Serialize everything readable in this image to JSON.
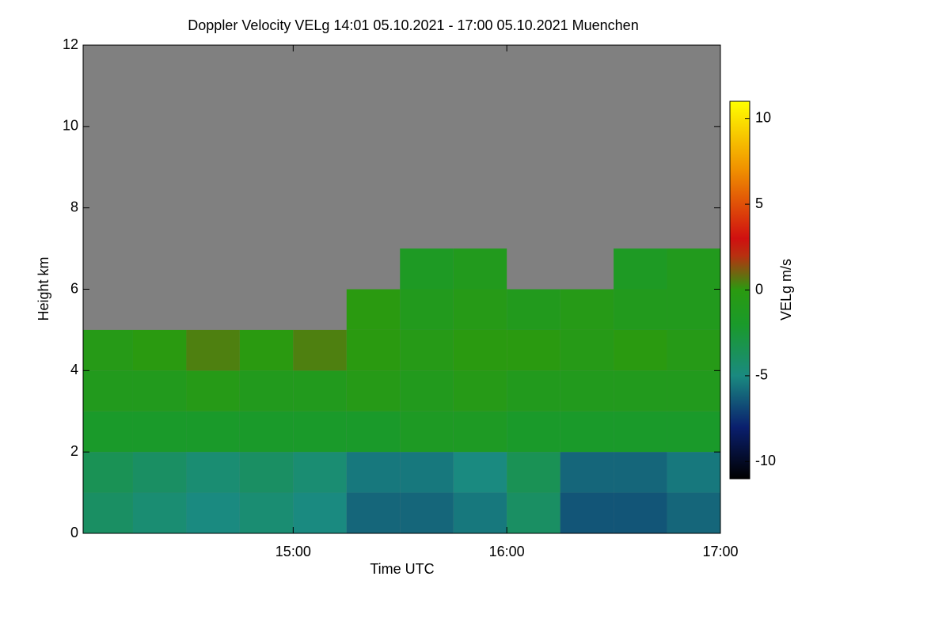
{
  "chart_data": {
    "type": "heatmap",
    "title": "Doppler Velocity VELg   14:01 05.10.2021 - 17:00 05.10.2021 Muenchen",
    "x_label": "Time UTC",
    "y_label": "Height km",
    "colorbar_label": "VELg m/s",
    "xbins": [
      841,
      855,
      870,
      885,
      900,
      915,
      930,
      945,
      960,
      975,
      990,
      1005,
      1020
    ],
    "ybins": [
      0,
      1,
      2,
      3,
      4,
      5,
      6,
      7
    ],
    "values": [
      [
        -4,
        -4.5,
        -5,
        -4.5,
        -5,
        -6,
        -6,
        -5.5,
        -4,
        -6.5,
        -6.5,
        -6
      ],
      [
        -3.5,
        -4,
        -4.5,
        -4,
        -4.5,
        -5.5,
        -5.5,
        -5,
        -3.5,
        -6,
        -6,
        -5.5
      ],
      [
        -2,
        -2,
        -2,
        -2,
        -2,
        -2,
        -1.5,
        -1.5,
        -2,
        -2,
        -2,
        -2
      ],
      [
        -1,
        -1,
        -0.5,
        -1,
        -1,
        -0.5,
        -1,
        -0.5,
        -1,
        -1,
        -1,
        -1
      ],
      [
        -0.5,
        0,
        0.5,
        0,
        0.5,
        0,
        -0.5,
        0,
        0,
        -0.5,
        0,
        -0.5
      ],
      [
        null,
        null,
        null,
        null,
        null,
        0,
        -1,
        -0.5,
        -1,
        -0.5,
        -1,
        -1
      ],
      [
        null,
        null,
        null,
        null,
        null,
        null,
        -1.5,
        -1,
        null,
        null,
        -1.5,
        -1
      ]
    ],
    "background": "#808080",
    "xlim": [
      841,
      1020
    ],
    "xticks": [
      {
        "value": 900,
        "label": "15:00"
      },
      {
        "value": 960,
        "label": "16:00"
      },
      {
        "value": 1020,
        "label": "17:00"
      }
    ],
    "ylim": [
      0,
      12
    ],
    "yticks": [
      0,
      2,
      4,
      6,
      8,
      10,
      12
    ],
    "zlim": [
      -11,
      11
    ],
    "zticks": [
      -10,
      -5,
      0,
      5,
      10
    ],
    "colorscale": [
      {
        "value": -11,
        "color": "#000000"
      },
      {
        "value": -8,
        "color": "#0a1f6e"
      },
      {
        "value": -5,
        "color": "#1a8a80"
      },
      {
        "value": -2,
        "color": "#1a9a2a"
      },
      {
        "value": 0,
        "color": "#2a9a10"
      },
      {
        "value": 2,
        "color": "#b83010"
      },
      {
        "value": 3,
        "color": "#d01010"
      },
      {
        "value": 7,
        "color": "#f09000"
      },
      {
        "value": 11,
        "color": "#ffff00"
      }
    ]
  }
}
